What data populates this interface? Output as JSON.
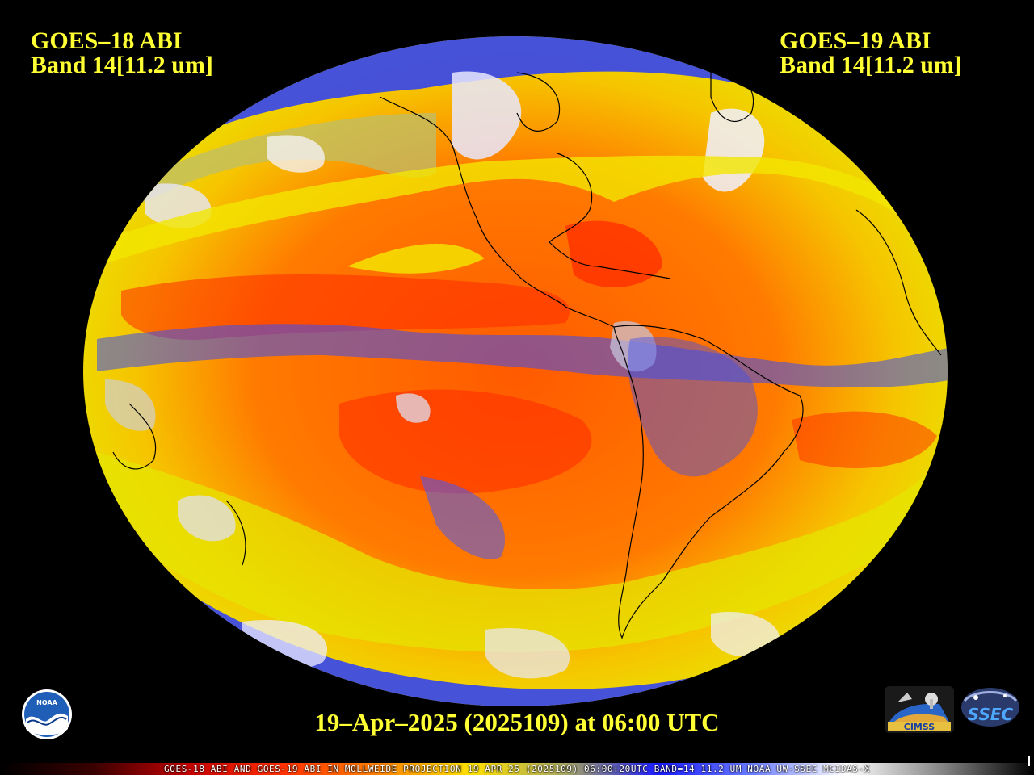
{
  "left_label": {
    "line1": "GOES–18 ABI",
    "line2": "Band 14[11.2 um]"
  },
  "right_label": {
    "line1": "GOES–19 ABI",
    "line2": "Band 14[11.2 um]"
  },
  "timestamp": "19–Apr–2025 (2025109) at 06:00 UTC",
  "colorbar_caption": "GOES-18 ABI AND GOES-19 ABI IN MOLLWEIDE PROJECTION 19 APR 25 (2025109) 06:00:20UTC BAND=14 11.2 UM NOAA UW-SSEC MCIDAS-X",
  "logos": {
    "noaa": "NOAA",
    "cimss": "CIMSS",
    "ssec": "SSEC"
  },
  "colors": {
    "text_yellow": "#ffff33",
    "background": "#000000",
    "warm_red": "#ff2a00",
    "warm_orange": "#ff7a00",
    "mid_yellow": "#f4f000",
    "cool_olive": "#a9a65a",
    "cold_blue": "#2a3cf0",
    "coldest_white": "#f2f2ff"
  },
  "colorbar_stops": [
    "#000000",
    "#3a0000",
    "#c40000",
    "#ff3000",
    "#ff8000",
    "#ffe000",
    "#a8a860",
    "#1a1aff",
    "#6a7cff",
    "#ffffff",
    "#888888",
    "#000000"
  ]
}
